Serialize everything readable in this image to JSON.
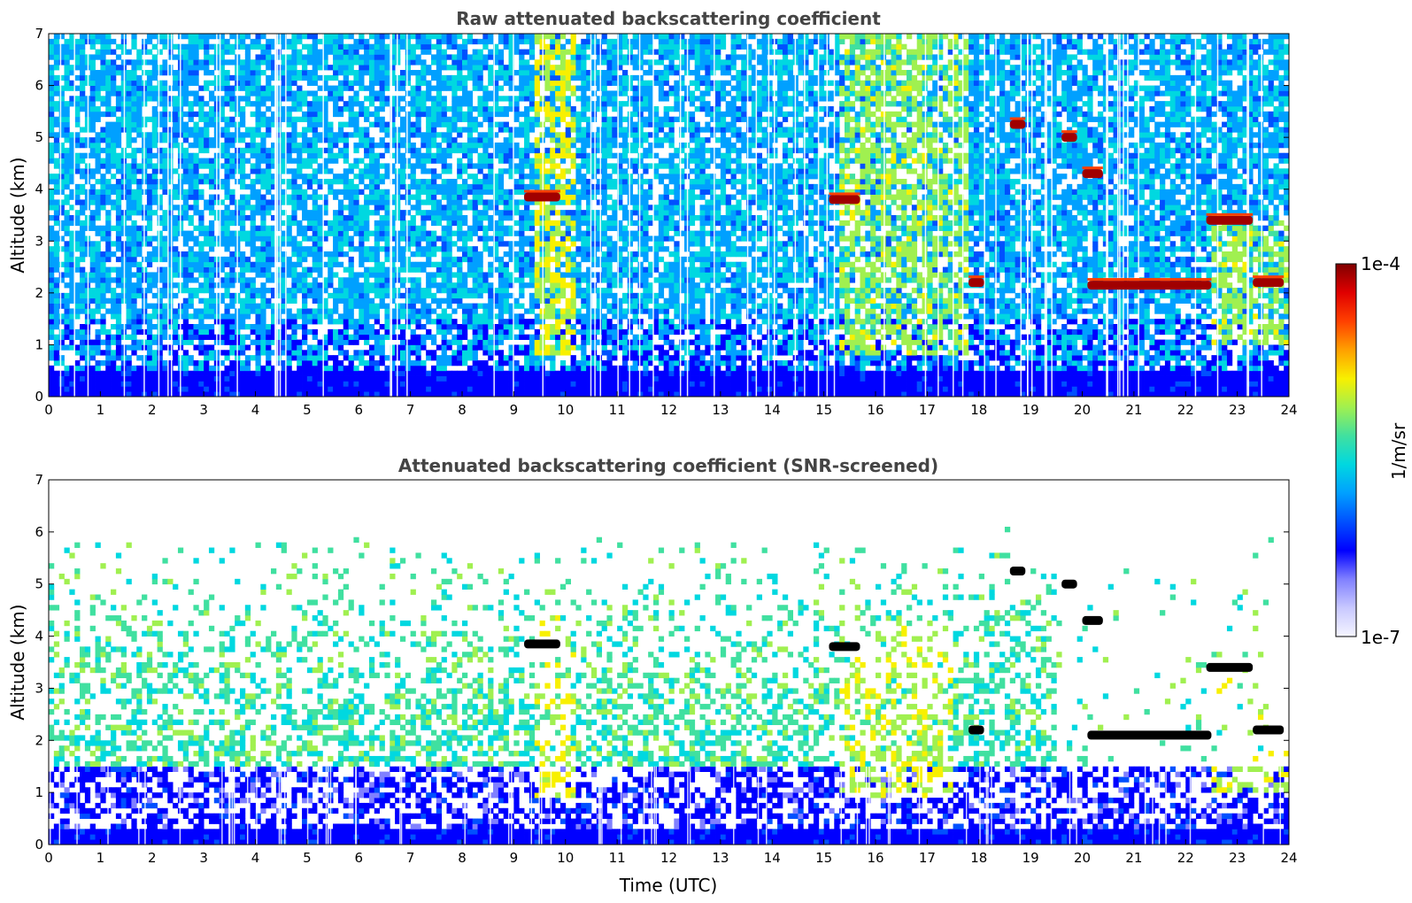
{
  "chart_data": [
    {
      "type": "heatmap",
      "title": "Raw attenuated backscattering coefficient",
      "xlabel": "",
      "ylabel": "Altitude (km)",
      "xlim": [
        0,
        24
      ],
      "ylim": [
        0,
        7
      ],
      "xticks": [
        "0",
        "1",
        "2",
        "3",
        "4",
        "5",
        "6",
        "7",
        "8",
        "9",
        "10",
        "11",
        "12",
        "13",
        "14",
        "15",
        "16",
        "17",
        "18",
        "19",
        "20",
        "21",
        "22",
        "23",
        "24"
      ],
      "yticks": [
        "0",
        "1",
        "2",
        "3",
        "4",
        "5",
        "6",
        "7"
      ],
      "features": [
        {
          "kind": "cloud",
          "t": [
            9.2,
            9.9
          ],
          "alt": 3.85,
          "level": 1.0
        },
        {
          "kind": "cloud",
          "t": [
            15.1,
            15.7
          ],
          "alt": 3.8,
          "level": 1.0
        },
        {
          "kind": "cloud",
          "t": [
            18.6,
            18.9
          ],
          "alt": 5.25,
          "level": 1.0
        },
        {
          "kind": "cloud",
          "t": [
            19.6,
            19.9
          ],
          "alt": 5.0,
          "level": 1.0
        },
        {
          "kind": "cloud",
          "t": [
            20.0,
            20.4
          ],
          "alt": 4.3,
          "level": 1.0
        },
        {
          "kind": "cloud",
          "t": [
            17.8,
            18.1
          ],
          "alt": 2.2,
          "level": 1.0
        },
        {
          "kind": "cloud",
          "t": [
            20.1,
            22.5
          ],
          "alt": 2.15,
          "level": 1.0
        },
        {
          "kind": "cloud",
          "t": [
            22.4,
            23.3
          ],
          "alt": 3.4,
          "level": 1.0
        },
        {
          "kind": "cloud",
          "t": [
            23.3,
            23.9
          ],
          "alt": 2.2,
          "level": 1.0
        },
        {
          "kind": "aerosol",
          "t": [
            9.4,
            10.2
          ],
          "alt": [
            0.8,
            7.0
          ],
          "level": 0.6
        },
        {
          "kind": "aerosol",
          "t": [
            15.3,
            17.8
          ],
          "alt": [
            0.8,
            7.0
          ],
          "level": 0.55
        },
        {
          "kind": "aerosol",
          "t": [
            22.5,
            24.0
          ],
          "alt": [
            1.0,
            3.5
          ],
          "level": 0.55
        }
      ],
      "boundary_layer_km": 0.45
    },
    {
      "type": "heatmap",
      "title": "Attenuated backscattering coefficient (SNR-screened)",
      "xlabel": "Time (UTC)",
      "ylabel": "Altitude (km)",
      "xlim": [
        0,
        24
      ],
      "ylim": [
        0,
        7
      ],
      "xticks": [
        "0",
        "1",
        "2",
        "3",
        "4",
        "5",
        "6",
        "7",
        "8",
        "9",
        "10",
        "11",
        "12",
        "13",
        "14",
        "15",
        "16",
        "17",
        "18",
        "19",
        "20",
        "21",
        "22",
        "23",
        "24"
      ],
      "yticks": [
        "0",
        "1",
        "2",
        "3",
        "4",
        "5",
        "6",
        "7"
      ],
      "features": [
        {
          "kind": "cloud",
          "t": [
            9.2,
            9.9
          ],
          "alt": 3.85,
          "level": 1.0
        },
        {
          "kind": "cloud",
          "t": [
            15.1,
            15.7
          ],
          "alt": 3.8,
          "level": 1.0
        },
        {
          "kind": "cloud",
          "t": [
            18.6,
            18.9
          ],
          "alt": 5.25,
          "level": 1.0
        },
        {
          "kind": "cloud",
          "t": [
            19.6,
            19.9
          ],
          "alt": 5.0,
          "level": 1.0
        },
        {
          "kind": "cloud",
          "t": [
            20.0,
            20.4
          ],
          "alt": 4.3,
          "level": 1.0
        },
        {
          "kind": "cloud",
          "t": [
            17.8,
            18.1
          ],
          "alt": 2.2,
          "level": 1.0
        },
        {
          "kind": "cloud",
          "t": [
            20.1,
            22.5
          ],
          "alt": 2.1,
          "level": 1.0
        },
        {
          "kind": "cloud",
          "t": [
            22.4,
            23.3
          ],
          "alt": 3.4,
          "level": 1.0
        },
        {
          "kind": "cloud",
          "t": [
            23.3,
            23.9
          ],
          "alt": 2.2,
          "level": 1.0
        },
        {
          "kind": "aerosol",
          "t": [
            9.4,
            10.2
          ],
          "alt": [
            0.9,
            4.5
          ],
          "level": 0.62
        },
        {
          "kind": "aerosol",
          "t": [
            15.3,
            17.5
          ],
          "alt": [
            0.9,
            4.2
          ],
          "level": 0.58
        },
        {
          "kind": "aerosol",
          "t": [
            22.5,
            24.0
          ],
          "alt": [
            1.0,
            3.5
          ],
          "level": 0.58
        }
      ],
      "boundary_layer_km": 1.5
    }
  ],
  "colorbar": {
    "max_label": "1e-4",
    "min_label": "1e-7",
    "unit_label": "1/m/sr",
    "colors": [
      "#f5f5ff",
      "#c8c8ff",
      "#8080ff",
      "#0000ff",
      "#0050ff",
      "#00a0ff",
      "#00d8e0",
      "#40e0a0",
      "#a0f050",
      "#f8f000",
      "#ffa000",
      "#ff4000",
      "#e00000",
      "#800000"
    ],
    "above_max_color": "#000000"
  }
}
